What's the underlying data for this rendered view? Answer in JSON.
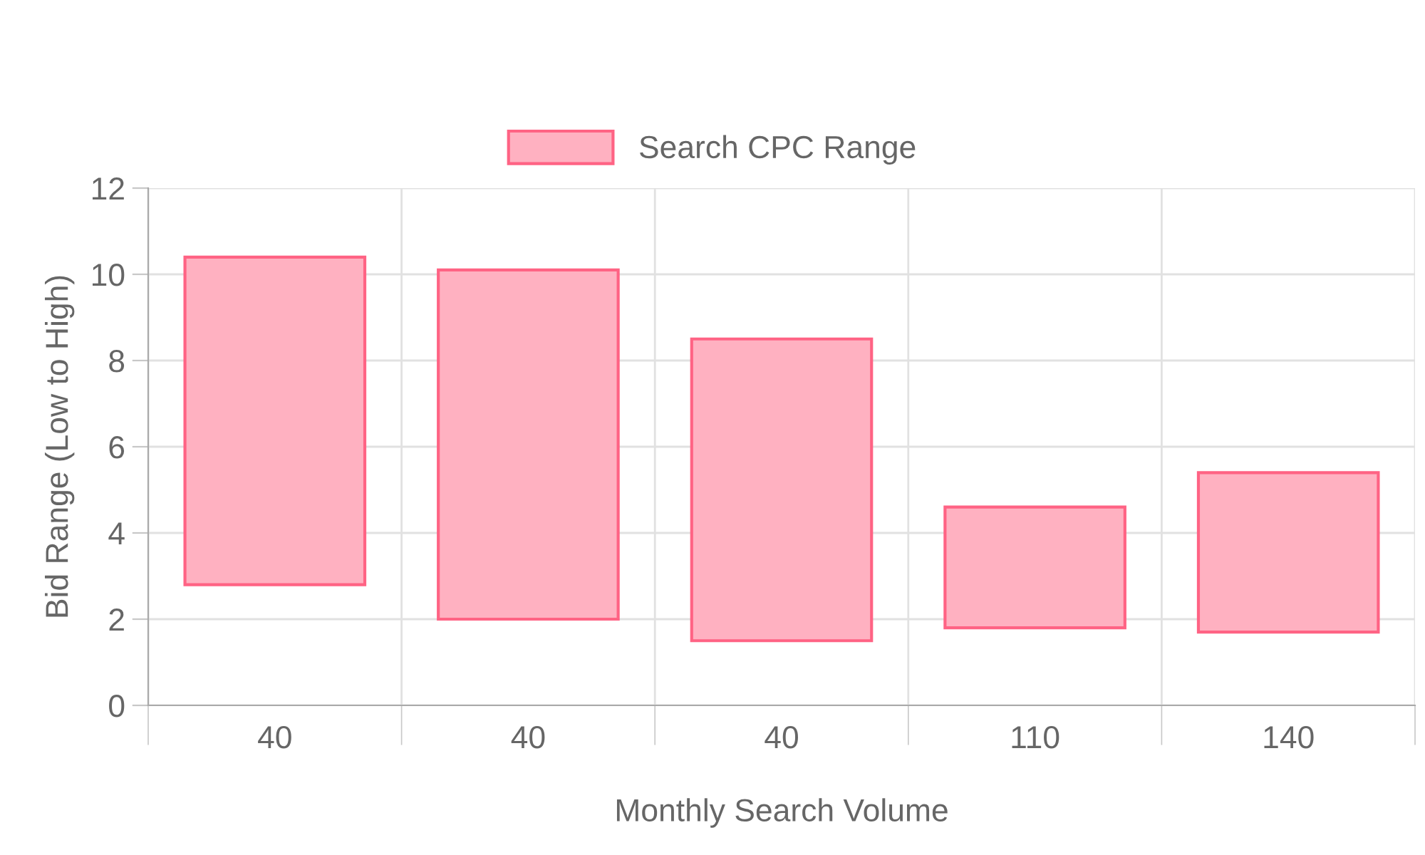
{
  "chart_data": {
    "type": "bar",
    "xlabel": "Monthly Search Volume",
    "ylabel": "Bid Range (Low to High)",
    "categories": [
      "40",
      "40",
      "40",
      "110",
      "140"
    ],
    "series": [
      {
        "name": "Search CPC Range",
        "color": "#ffb1c1",
        "values": [
          7.6,
          8.1,
          7.0,
          2.8,
          3.7
        ],
        "base": [
          2.8,
          2.0,
          1.5,
          1.8,
          1.7
        ]
      }
    ],
    "ylim": [
      0,
      12
    ],
    "yticks": [
      0,
      2,
      4,
      6,
      8,
      10,
      12
    ],
    "grid": true,
    "legend": "top"
  }
}
